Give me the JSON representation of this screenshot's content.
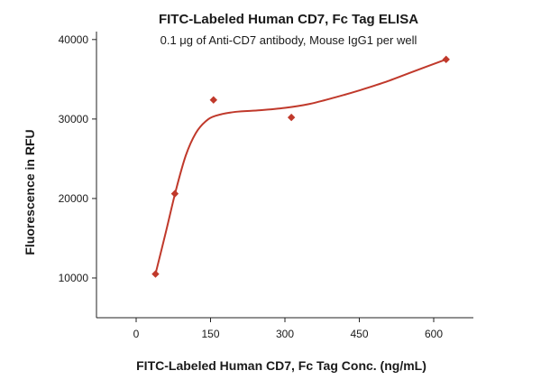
{
  "chart_data": {
    "type": "scatter",
    "title": "FITC-Labeled Human CD7, Fc Tag ELISA",
    "subtitle": "0.1 μg of Anti-CD7 antibody, Mouse IgG1 per well",
    "xlabel": "FITC-Labeled Human CD7, Fc Tag Conc. (ng/mL)",
    "ylabel": "Fluorescence in RFU",
    "xlim": [
      -80,
      680
    ],
    "ylim": [
      5000,
      41000
    ],
    "xticks": [
      0,
      150,
      300,
      450,
      600
    ],
    "xtick_labels": [
      "0",
      "150",
      "300",
      "450",
      "600"
    ],
    "yticks": [
      10000,
      20000,
      30000,
      40000
    ],
    "ytick_labels": [
      "10000",
      "20000",
      "30000",
      "40000"
    ],
    "grid": false,
    "legend": "none",
    "series": [
      {
        "marker_color": "#c0392b",
        "line_color": "#c0392b",
        "points": [
          {
            "x": 39,
            "y": 10500
          },
          {
            "x": 78,
            "y": 20600
          },
          {
            "x": 156,
            "y": 32400
          },
          {
            "x": 313,
            "y": 30200
          },
          {
            "x": 625,
            "y": 37500
          }
        ],
        "fit_curve": [
          {
            "x": 39,
            "y": 10500
          },
          {
            "x": 60,
            "y": 15800
          },
          {
            "x": 80,
            "y": 21000
          },
          {
            "x": 100,
            "y": 25400
          },
          {
            "x": 120,
            "y": 28200
          },
          {
            "x": 140,
            "y": 29700
          },
          {
            "x": 160,
            "y": 30400
          },
          {
            "x": 200,
            "y": 30900
          },
          {
            "x": 250,
            "y": 31100
          },
          {
            "x": 300,
            "y": 31400
          },
          {
            "x": 350,
            "y": 31900
          },
          {
            "x": 400,
            "y": 32700
          },
          {
            "x": 450,
            "y": 33600
          },
          {
            "x": 500,
            "y": 34600
          },
          {
            "x": 560,
            "y": 36000
          },
          {
            "x": 625,
            "y": 37500
          }
        ]
      }
    ]
  }
}
